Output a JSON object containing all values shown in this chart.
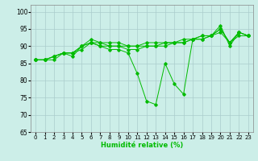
{
  "xlabel": "Humidité relative (%)",
  "xlim": [
    -0.5,
    23.5
  ],
  "ylim": [
    65,
    102
  ],
  "yticks": [
    65,
    70,
    75,
    80,
    85,
    90,
    95,
    100
  ],
  "xticks": [
    0,
    1,
    2,
    3,
    4,
    5,
    6,
    7,
    8,
    9,
    10,
    11,
    12,
    13,
    14,
    15,
    16,
    17,
    18,
    19,
    20,
    21,
    22,
    23
  ],
  "background_color": "#cceee8",
  "grid_color": "#aacccc",
  "line_color": "#00bb00",
  "curves": [
    [
      86,
      86,
      86,
      88,
      88,
      89,
      91,
      90,
      89,
      89,
      88,
      82,
      74,
      73,
      85,
      79,
      76,
      92,
      92,
      93,
      96,
      90,
      94,
      93
    ],
    [
      86,
      86,
      87,
      88,
      88,
      90,
      91,
      90,
      90,
      90,
      89,
      89,
      90,
      90,
      90,
      91,
      91,
      92,
      92,
      93,
      94,
      91,
      93,
      93
    ],
    [
      86,
      86,
      87,
      88,
      88,
      90,
      91,
      91,
      90,
      90,
      90,
      90,
      90,
      90,
      91,
      91,
      91,
      92,
      93,
      93,
      95,
      91,
      94,
      93
    ],
    [
      86,
      86,
      87,
      88,
      87,
      90,
      92,
      91,
      91,
      91,
      90,
      90,
      91,
      91,
      91,
      91,
      92,
      92,
      93,
      93,
      95,
      91,
      94,
      93
    ]
  ]
}
